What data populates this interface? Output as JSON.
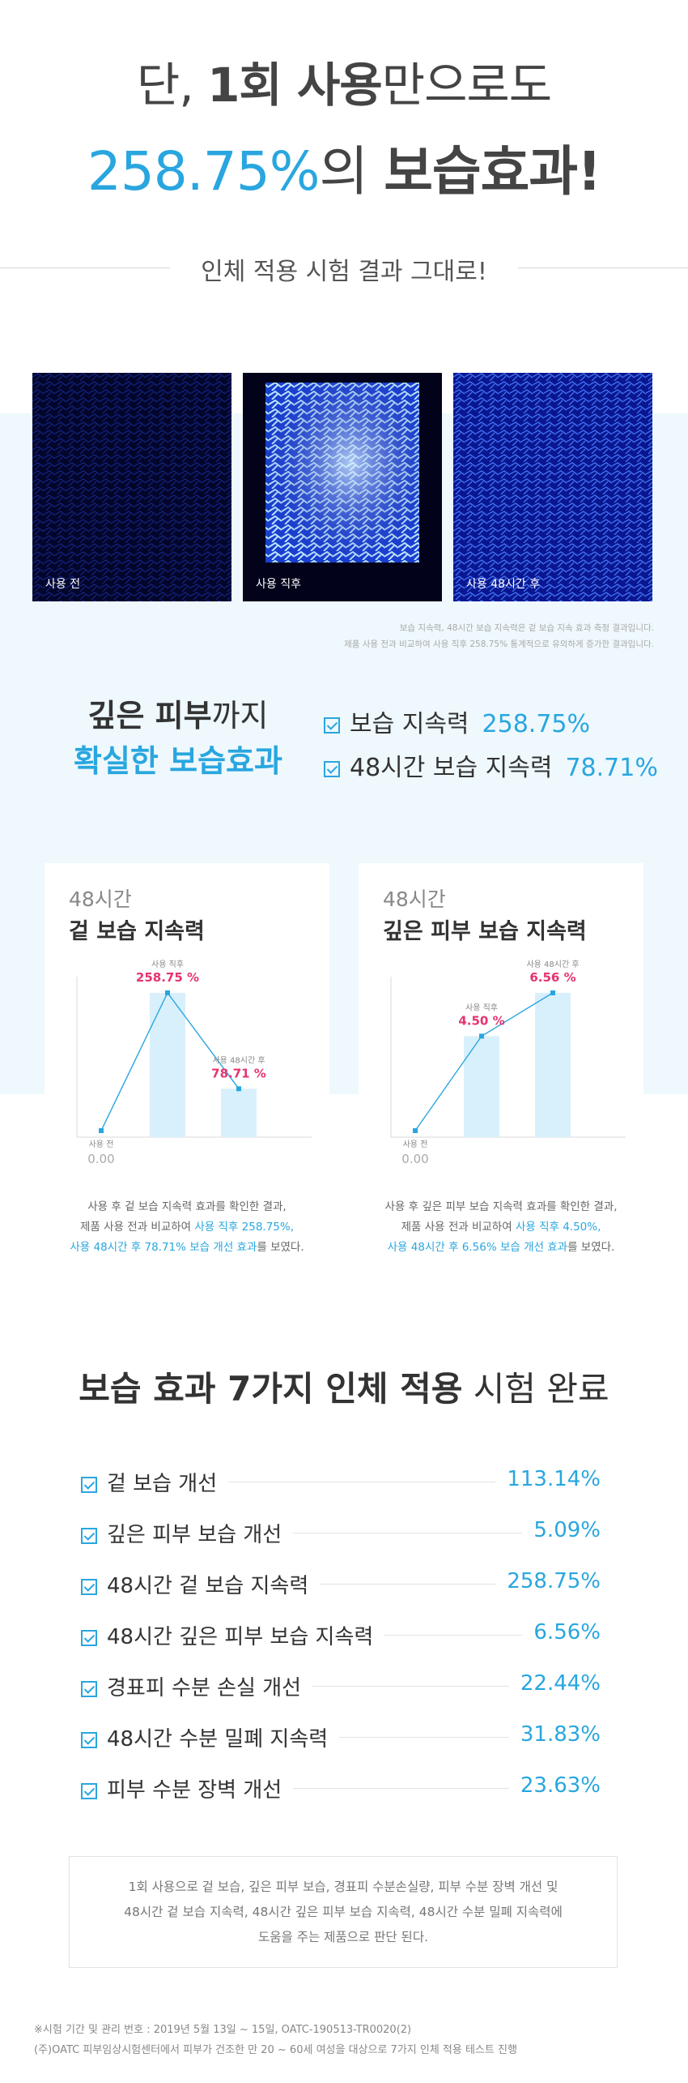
{
  "headline": {
    "line1_pre": "단, ",
    "line1_bold": "1회 사용",
    "line1_post": "만으로도",
    "line2_value": "258.75%",
    "line2_mid": "의 ",
    "line2_bold": "보습효과!"
  },
  "subtitle": "인체 적용 시험 결과 그대로!",
  "photos": [
    {
      "label": "사용 전",
      "tone": "dark"
    },
    {
      "label": "사용 직후",
      "tone": "bright"
    },
    {
      "label": "사용 48시간 후",
      "tone": "medium"
    }
  ],
  "photo_notes": [
    "보습 지속력, 48시간 보습 지속력은 겉 보습 지속 효과 측정 결과입니다.",
    "제품 사용 전과 비교하여 사용 직후 258.75% 통계적으로 유의하게 증가한 결과입니다."
  ],
  "deep": {
    "line1_bold": "깊은 피부",
    "line1_rest": "까지",
    "line2": "확실한 보습효과",
    "bullets": [
      {
        "label": "보습 지속력",
        "value": "258.75%"
      },
      {
        "label": "48시간 보습 지속력",
        "value": "78.71%"
      }
    ]
  },
  "cards": [
    {
      "heading_small": "48시간",
      "heading": "겉 보습 지속력",
      "points": [
        {
          "label": "사용 전",
          "value": "0.00"
        },
        {
          "label": "사용 직후",
          "value": "258.75"
        },
        {
          "label": "사용 48시간 후",
          "value": "78.71"
        }
      ],
      "desc": {
        "l1": "사용 후 겉 보습 지속력 효과를 확인한 결과,",
        "l2_pre": "제품 사용 전과 비교하여 ",
        "l2_hl": "사용 직후 258.75%,",
        "l3_hl": "사용 48시간 후 78.71% 보습 개선 효과",
        "l3_post": "를 보였다."
      }
    },
    {
      "heading_small": "48시간",
      "heading": "깊은 피부 보습 지속력",
      "points": [
        {
          "label": "사용 전",
          "value": "0.00"
        },
        {
          "label": "사용 직후",
          "value": "4.50"
        },
        {
          "label": "사용 48시간 후",
          "value": "6.56"
        }
      ],
      "desc": {
        "l1": "사용 후 깊은 피부 보습 지속력 효과를 확인한 결과,",
        "l2_pre": "제품 사용 전과 비교하여 ",
        "l2_hl": "사용 직후 4.50%,",
        "l3_hl": "사용 48시간 후 6.56% 보습 개선 효과",
        "l3_post": "를 보였다."
      }
    }
  ],
  "chart_data": [
    {
      "type": "bar",
      "categories": [
        "사용 전",
        "사용 직후",
        "사용 48시간 후"
      ],
      "values": [
        0.0,
        258.75,
        78.71
      ],
      "title": "겉 보습 지속력",
      "unit": "%"
    },
    {
      "type": "bar",
      "categories": [
        "사용 전",
        "사용 직후",
        "사용 48시간 후"
      ],
      "values": [
        0.0,
        4.5,
        6.56
      ],
      "title": "깊은 피부 보습 지속력",
      "unit": "%"
    }
  ],
  "section": {
    "title_bold": "보습 효과 7가지 인체 적용",
    "title_rest": " 시험 완료",
    "rows": [
      {
        "label": "겉 보습 개선",
        "value": "113.14%"
      },
      {
        "label": "깊은 피부 보습 개선",
        "value": "5.09%"
      },
      {
        "label": "48시간 겉 보습 지속력",
        "value": "258.75%"
      },
      {
        "label": "48시간 깊은 피부 보습 지속력",
        "value": "6.56%"
      },
      {
        "label": "경표피 수분 손실 개선",
        "value": "22.44%"
      },
      {
        "label": "48시간 수분 밀폐 지속력",
        "value": "31.83%"
      },
      {
        "label": "피부 수분 장벽 개선",
        "value": "23.63%"
      }
    ]
  },
  "summary": [
    "1회 사용으로 겉 보습, 깊은 피부 보습, 경표피 수분손실량, 피부 수분 장벽 개선 및",
    "48시간 겉 보습 지속력, 48시간 깊은 피부 보습 지속력, 48시간 수분 밀폐 지속력에",
    "도움을 주는 제품으로 판단 된다."
  ],
  "footnotes": [
    "※시험 기간 및 관리 번호 : 2019년 5월 13일 ~ 15일, OATC-190513-TR0020(2)",
    "(주)OATC 피부임상시험센터에서 피부가 건조한 만 20 ~ 60세 여성을 대상으로 7가지 인체 적용 테스트 진행"
  ],
  "colors": {
    "accent": "#29a6df",
    "highlight": "#e6336f",
    "bg_light": "#eef8fd"
  }
}
